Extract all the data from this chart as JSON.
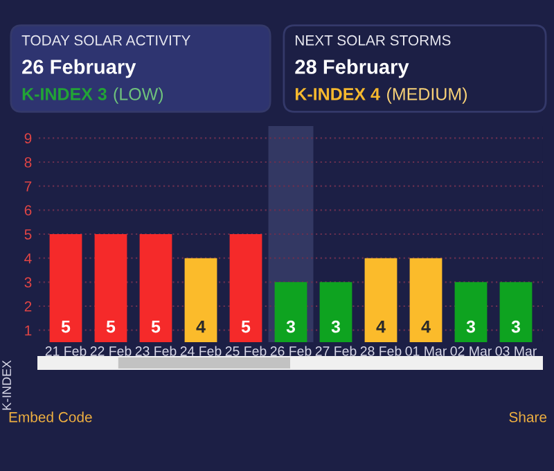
{
  "chart_data": [
    {
      "type": "other",
      "title": "TODAY SOLAR ACTIVITY",
      "subtitle": "26 February",
      "annotations": [
        "K-INDEX 3",
        "(LOW)"
      ],
      "color": "#22a336"
    },
    {
      "type": "other",
      "title": "NEXT SOLAR STORMS",
      "subtitle": "28 February",
      "annotations": [
        "K-INDEX 4",
        "(MEDIUM)"
      ],
      "color": "#f5b82e"
    },
    {
      "type": "bar",
      "ylabel": "K-INDEX",
      "categories": [
        "21 Feb",
        "22 Feb",
        "23 Feb",
        "24 Feb",
        "25 Feb",
        "26 Feb",
        "27 Feb",
        "28 Feb",
        "01 Mar",
        "02 Mar",
        "03 Mar"
      ],
      "values": [
        5,
        5,
        5,
        4,
        5,
        3,
        3,
        4,
        4,
        3,
        3
      ],
      "colors": [
        "#f52a2a",
        "#f52a2a",
        "#f52a2a",
        "#fbbb2b",
        "#f52a2a",
        "#0ea320",
        "#0ea320",
        "#fbbb2b",
        "#fbbb2b",
        "#0ea320",
        "#0ea320"
      ],
      "data_labels": true,
      "ylim": [
        0.5,
        9.5
      ],
      "yticks": [
        1,
        2,
        3,
        4,
        5,
        6,
        7,
        8,
        9
      ],
      "grid": "y",
      "bands": [
        {
          "axis": "x",
          "from": "26 Feb",
          "to": "26 Feb",
          "color": "#3a3f6a"
        }
      ],
      "annotations": [
        "Embed Code",
        "Share"
      ]
    }
  ]
}
